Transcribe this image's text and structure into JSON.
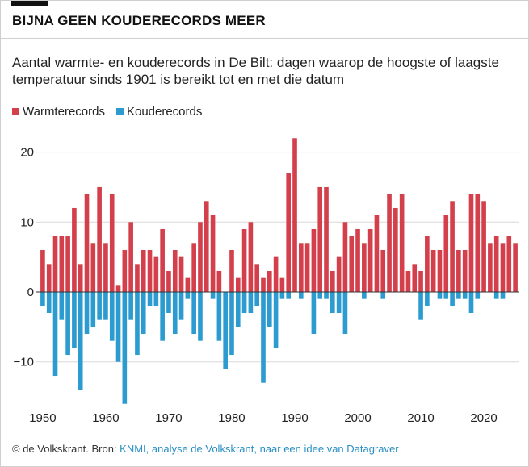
{
  "header": {
    "title": "BIJNA GEEN KOUDERECORDS MEER"
  },
  "subtitle": "Aantal warmte- en kouderecords in De Bilt: dagen waarop de hoogste of laagste temperatuur sinds 1901 is bereikt tot en met die datum",
  "legend": {
    "warm_label": "Warmterecords",
    "cold_label": "Kouderecords"
  },
  "colors": {
    "warm": "#d33f4b",
    "cold": "#2b9bd0",
    "grid": "#d9d9d9",
    "zero": "#333333",
    "text": "#222222"
  },
  "footer": {
    "prefix": "© de Volkskrant. Bron: ",
    "source": "KNMI, analyse de Volkskrant, naar een idee van Datagraver"
  },
  "chart_data": {
    "type": "bar",
    "title": "BIJNA GEEN KOUDERECORDS MEER",
    "xlabel": "",
    "ylabel": "",
    "ylim": [
      -16,
      22
    ],
    "yticks": [
      20,
      10,
      0,
      -10
    ],
    "ytick_labels": [
      "20",
      "10",
      "0",
      "−10"
    ],
    "xticks": [
      1950,
      1960,
      1970,
      1980,
      1990,
      2000,
      2010,
      2020
    ],
    "xtick_labels": [
      "1950",
      "1960",
      "1970",
      "1980",
      "1990",
      "2000",
      "2010",
      "2020"
    ],
    "legend_position": "top-left",
    "grid": true,
    "x": [
      1950,
      1951,
      1952,
      1953,
      1954,
      1955,
      1956,
      1957,
      1958,
      1959,
      1960,
      1961,
      1962,
      1963,
      1964,
      1965,
      1966,
      1967,
      1968,
      1969,
      1970,
      1971,
      1972,
      1973,
      1974,
      1975,
      1976,
      1977,
      1978,
      1979,
      1980,
      1981,
      1982,
      1983,
      1984,
      1985,
      1986,
      1987,
      1988,
      1989,
      1990,
      1991,
      1992,
      1993,
      1994,
      1995,
      1996,
      1997,
      1998,
      1999,
      2000,
      2001,
      2002,
      2003,
      2004,
      2005,
      2006,
      2007,
      2008,
      2009,
      2010,
      2011,
      2012,
      2013,
      2014,
      2015,
      2016,
      2017,
      2018,
      2019,
      2020,
      2021,
      2022,
      2023,
      2024,
      2025
    ],
    "series": [
      {
        "name": "Warmterecords",
        "values": [
          6,
          4,
          8,
          8,
          8,
          12,
          4,
          14,
          7,
          15,
          7,
          14,
          1,
          6,
          10,
          4,
          6,
          6,
          5,
          9,
          3,
          6,
          5,
          2,
          7,
          10,
          13,
          11,
          3,
          0,
          6,
          2,
          9,
          10,
          4,
          2,
          3,
          5,
          2,
          17,
          22,
          7,
          7,
          9,
          15,
          15,
          3,
          5,
          10,
          8,
          9,
          7,
          9,
          11,
          6,
          14,
          12,
          14,
          3,
          4,
          3,
          8,
          6,
          6,
          11,
          13,
          6,
          6,
          14,
          14,
          13,
          7,
          8,
          7,
          8,
          7
        ]
      },
      {
        "name": "Kouderecords",
        "values": [
          -2,
          -3,
          -12,
          -4,
          -9,
          -8,
          -14,
          -6,
          -5,
          -4,
          -4,
          -7,
          -10,
          -16,
          -4,
          -9,
          -6,
          -2,
          -2,
          -7,
          -3,
          -6,
          -4,
          -1,
          -6,
          -7,
          0,
          -1,
          -7,
          -11,
          -9,
          -5,
          -3,
          -3,
          -2,
          -13,
          -5,
          -8,
          -1,
          -1,
          0,
          -1,
          0,
          -6,
          -1,
          -1,
          -3,
          -3,
          -6,
          0,
          0,
          -1,
          0,
          0,
          -1,
          0,
          0,
          0,
          0,
          0,
          -4,
          -2,
          0,
          -1,
          -1,
          -2,
          -1,
          -1,
          -3,
          -1,
          0,
          0,
          -1,
          -1,
          0,
          0
        ]
      }
    ]
  }
}
